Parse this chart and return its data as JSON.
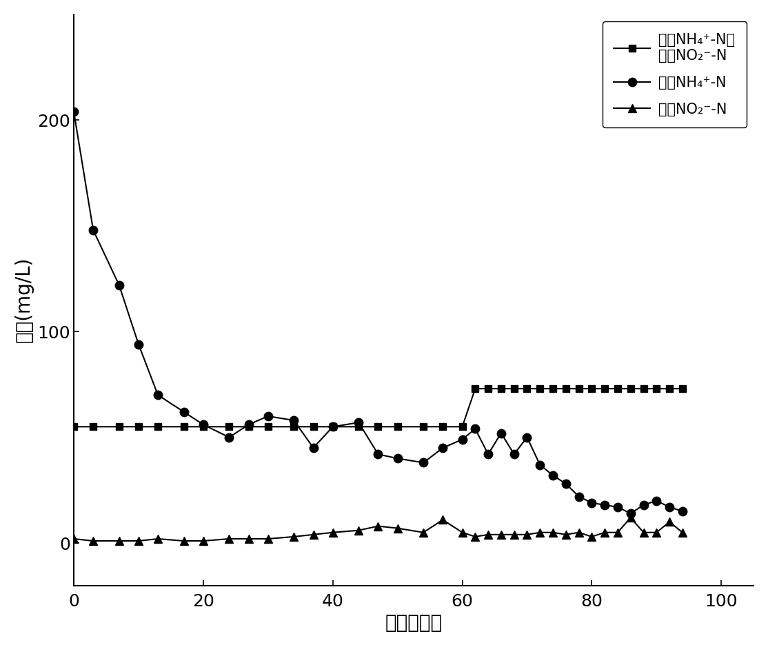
{
  "title": "",
  "xlabel": "时间（天）",
  "ylabel": "浓度(mg/L)",
  "xlim": [
    0,
    105
  ],
  "ylim": [
    -20,
    250
  ],
  "xticks": [
    0,
    20,
    40,
    60,
    80,
    100
  ],
  "yticks": [
    0,
    100,
    200
  ],
  "background_color": "#ffffff",
  "series_inlet": {
    "x": [
      0,
      3,
      7,
      10,
      13,
      17,
      20,
      24,
      27,
      30,
      34,
      37,
      40,
      44,
      47,
      50,
      54,
      57,
      60,
      62,
      64,
      66,
      68,
      70,
      72,
      74,
      76,
      78,
      80,
      82,
      84,
      86,
      88,
      90,
      92,
      94
    ],
    "y": [
      55,
      55,
      55,
      55,
      55,
      55,
      55,
      55,
      55,
      55,
      55,
      55,
      55,
      55,
      55,
      55,
      55,
      55,
      55,
      73,
      73,
      73,
      73,
      73,
      73,
      73,
      73,
      73,
      73,
      73,
      73,
      73,
      73,
      73,
      73,
      73
    ],
    "color": "#000000",
    "marker": "s",
    "markersize": 7,
    "linewidth": 1.5,
    "label1": "进水NH",
    "label2": "⁺-N；",
    "label3": "进水NO",
    "label4": "⁻-N"
  },
  "series_effluent_nh4": {
    "x": [
      0,
      3,
      7,
      10,
      13,
      17,
      20,
      24,
      27,
      30,
      34,
      37,
      40,
      44,
      47,
      50,
      54,
      57,
      60,
      62,
      64,
      66,
      68,
      70,
      72,
      74,
      76,
      78,
      80,
      82,
      84,
      86,
      88,
      90,
      92,
      94
    ],
    "y": [
      204,
      148,
      122,
      94,
      70,
      62,
      56,
      50,
      56,
      60,
      58,
      45,
      55,
      57,
      42,
      40,
      38,
      45,
      49,
      54,
      42,
      52,
      42,
      50,
      37,
      32,
      28,
      22,
      19,
      18,
      17,
      14,
      18,
      20,
      17,
      15
    ],
    "color": "#000000",
    "marker": "o",
    "markersize": 9,
    "linewidth": 1.5,
    "label": "出水NH₄⁺-N"
  },
  "series_effluent_no2": {
    "x": [
      0,
      3,
      7,
      10,
      13,
      17,
      20,
      24,
      27,
      30,
      34,
      37,
      40,
      44,
      47,
      50,
      54,
      57,
      60,
      62,
      64,
      66,
      68,
      70,
      72,
      74,
      76,
      78,
      80,
      82,
      84,
      86,
      88,
      90,
      92,
      94
    ],
    "y": [
      2,
      1,
      1,
      1,
      2,
      1,
      1,
      2,
      2,
      2,
      3,
      4,
      5,
      6,
      8,
      7,
      5,
      11,
      5,
      3,
      4,
      4,
      4,
      4,
      5,
      5,
      4,
      5,
      3,
      5,
      5,
      12,
      5,
      5,
      10,
      5
    ],
    "color": "#000000",
    "marker": "^",
    "markersize": 9,
    "linewidth": 1.5,
    "label": "出水NO₂⁻-N"
  },
  "fontsize_axis_label": 20,
  "fontsize_tick": 18,
  "fontsize_legend": 15
}
